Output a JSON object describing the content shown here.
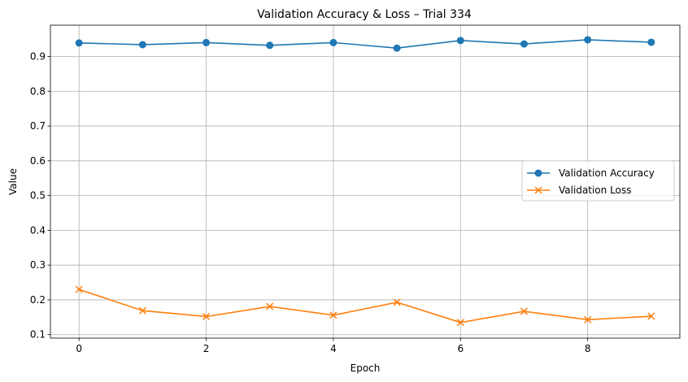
{
  "chart_data": {
    "type": "line",
    "title": "Validation Accuracy & Loss – Trial 334",
    "xlabel": "Epoch",
    "ylabel": "Value",
    "x": [
      0,
      1,
      2,
      3,
      4,
      5,
      6,
      7,
      8,
      9
    ],
    "xticks": [
      "0",
      "2",
      "4",
      "6",
      "8"
    ],
    "yticks": [
      "0.1",
      "0.2",
      "0.3",
      "0.4",
      "0.5",
      "0.6",
      "0.7",
      "0.8",
      "0.9"
    ],
    "xlim": [
      -0.45,
      9.45
    ],
    "ylim": [
      0.09,
      0.99
    ],
    "grid": true,
    "legend_position": "center-right",
    "series": [
      {
        "name": "Validation Accuracy",
        "color": "#1f77b4",
        "marker": "circle",
        "values": [
          0.939,
          0.934,
          0.94,
          0.932,
          0.94,
          0.924,
          0.946,
          0.936,
          0.948,
          0.941
        ]
      },
      {
        "name": "Validation Loss",
        "color": "#ff7f0e",
        "marker": "x",
        "values": [
          0.23,
          0.169,
          0.152,
          0.181,
          0.156,
          0.193,
          0.135,
          0.167,
          0.143,
          0.153
        ]
      }
    ]
  }
}
